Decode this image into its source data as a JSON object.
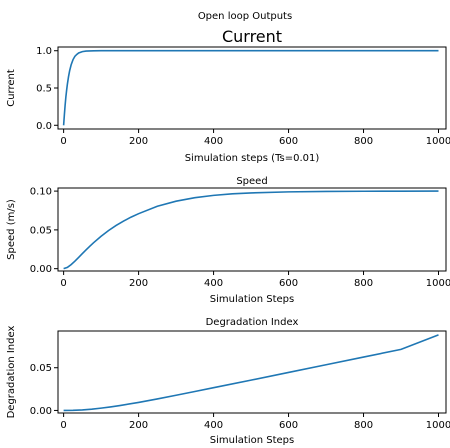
{
  "figure": {
    "suptitle": "Open loop Outputs",
    "line_color": "#1f77b4"
  },
  "chart_data": [
    {
      "type": "line",
      "title": "Current",
      "xlabel": "Simulation steps (Ts=0.01)",
      "ylabel": "Current",
      "xlim": [
        -15,
        1020
      ],
      "ylim": [
        -0.05,
        1.05
      ],
      "xticks": [
        0,
        200,
        400,
        600,
        800,
        1000
      ],
      "yticks": [
        0.0,
        0.5,
        1.0
      ],
      "ytick_labels": [
        "0.0",
        "0.5",
        "1.0"
      ],
      "grid": false,
      "series": [
        {
          "x": [
            0,
            2,
            4,
            6,
            8,
            10,
            13,
            16,
            20,
            25,
            30,
            35,
            40,
            50,
            60,
            80,
            100,
            150,
            200,
            300,
            400,
            500,
            600,
            700,
            800,
            900,
            1000
          ],
          "y": [
            0.0,
            0.14,
            0.27,
            0.38,
            0.47,
            0.55,
            0.65,
            0.73,
            0.81,
            0.88,
            0.925,
            0.95,
            0.97,
            0.988,
            0.995,
            0.999,
            1.0,
            1.0,
            1.0,
            1.0,
            1.0,
            1.0,
            1.0,
            1.0,
            1.0,
            1.0,
            1.0
          ]
        }
      ]
    },
    {
      "type": "line",
      "title": "Speed",
      "xlabel": "Simulation Steps",
      "ylabel": "Speed (m/s)",
      "xlim": [
        -15,
        1020
      ],
      "ylim": [
        -0.003,
        0.104
      ],
      "xticks": [
        0,
        200,
        400,
        600,
        800,
        1000
      ],
      "yticks": [
        0.0,
        0.05,
        0.1
      ],
      "ytick_labels": [
        "0.00",
        "0.05",
        "0.10"
      ],
      "grid": false,
      "series": [
        {
          "x": [
            0,
            10,
            20,
            30,
            40,
            50,
            60,
            70,
            80,
            100,
            120,
            140,
            160,
            180,
            200,
            250,
            300,
            350,
            400,
            450,
            500,
            600,
            700,
            800,
            900,
            1000
          ],
          "y": [
            0.0,
            0.0016,
            0.0052,
            0.0097,
            0.0145,
            0.0195,
            0.0243,
            0.029,
            0.0335,
            0.0418,
            0.0492,
            0.0557,
            0.0614,
            0.0665,
            0.0709,
            0.0805,
            0.087,
            0.0915,
            0.0945,
            0.0965,
            0.0977,
            0.099,
            0.0996,
            0.0998,
            0.0999,
            0.1
          ]
        }
      ]
    },
    {
      "type": "line",
      "title": "Degradation Index",
      "xlabel": "Simulation Steps",
      "ylabel": "Degradation Index",
      "xlim": [
        -15,
        1020
      ],
      "ylim": [
        -0.003,
        0.093
      ],
      "xticks": [
        0,
        200,
        400,
        600,
        800,
        1000
      ],
      "yticks": [
        0.0,
        0.05
      ],
      "ytick_labels": [
        "0.00",
        "0.05"
      ],
      "grid": false,
      "series": [
        {
          "x": [
            0,
            25,
            50,
            75,
            100,
            125,
            150,
            200,
            250,
            300,
            350,
            400,
            500,
            600,
            700,
            800,
            900,
            1000
          ],
          "y": [
            0.0,
            0.0001,
            0.0006,
            0.0015,
            0.0027,
            0.0041,
            0.0057,
            0.0094,
            0.0135,
            0.0178,
            0.0222,
            0.0266,
            0.0355,
            0.0445,
            0.0535,
            0.0625,
            0.0715,
            0.0885
          ]
        }
      ]
    }
  ]
}
